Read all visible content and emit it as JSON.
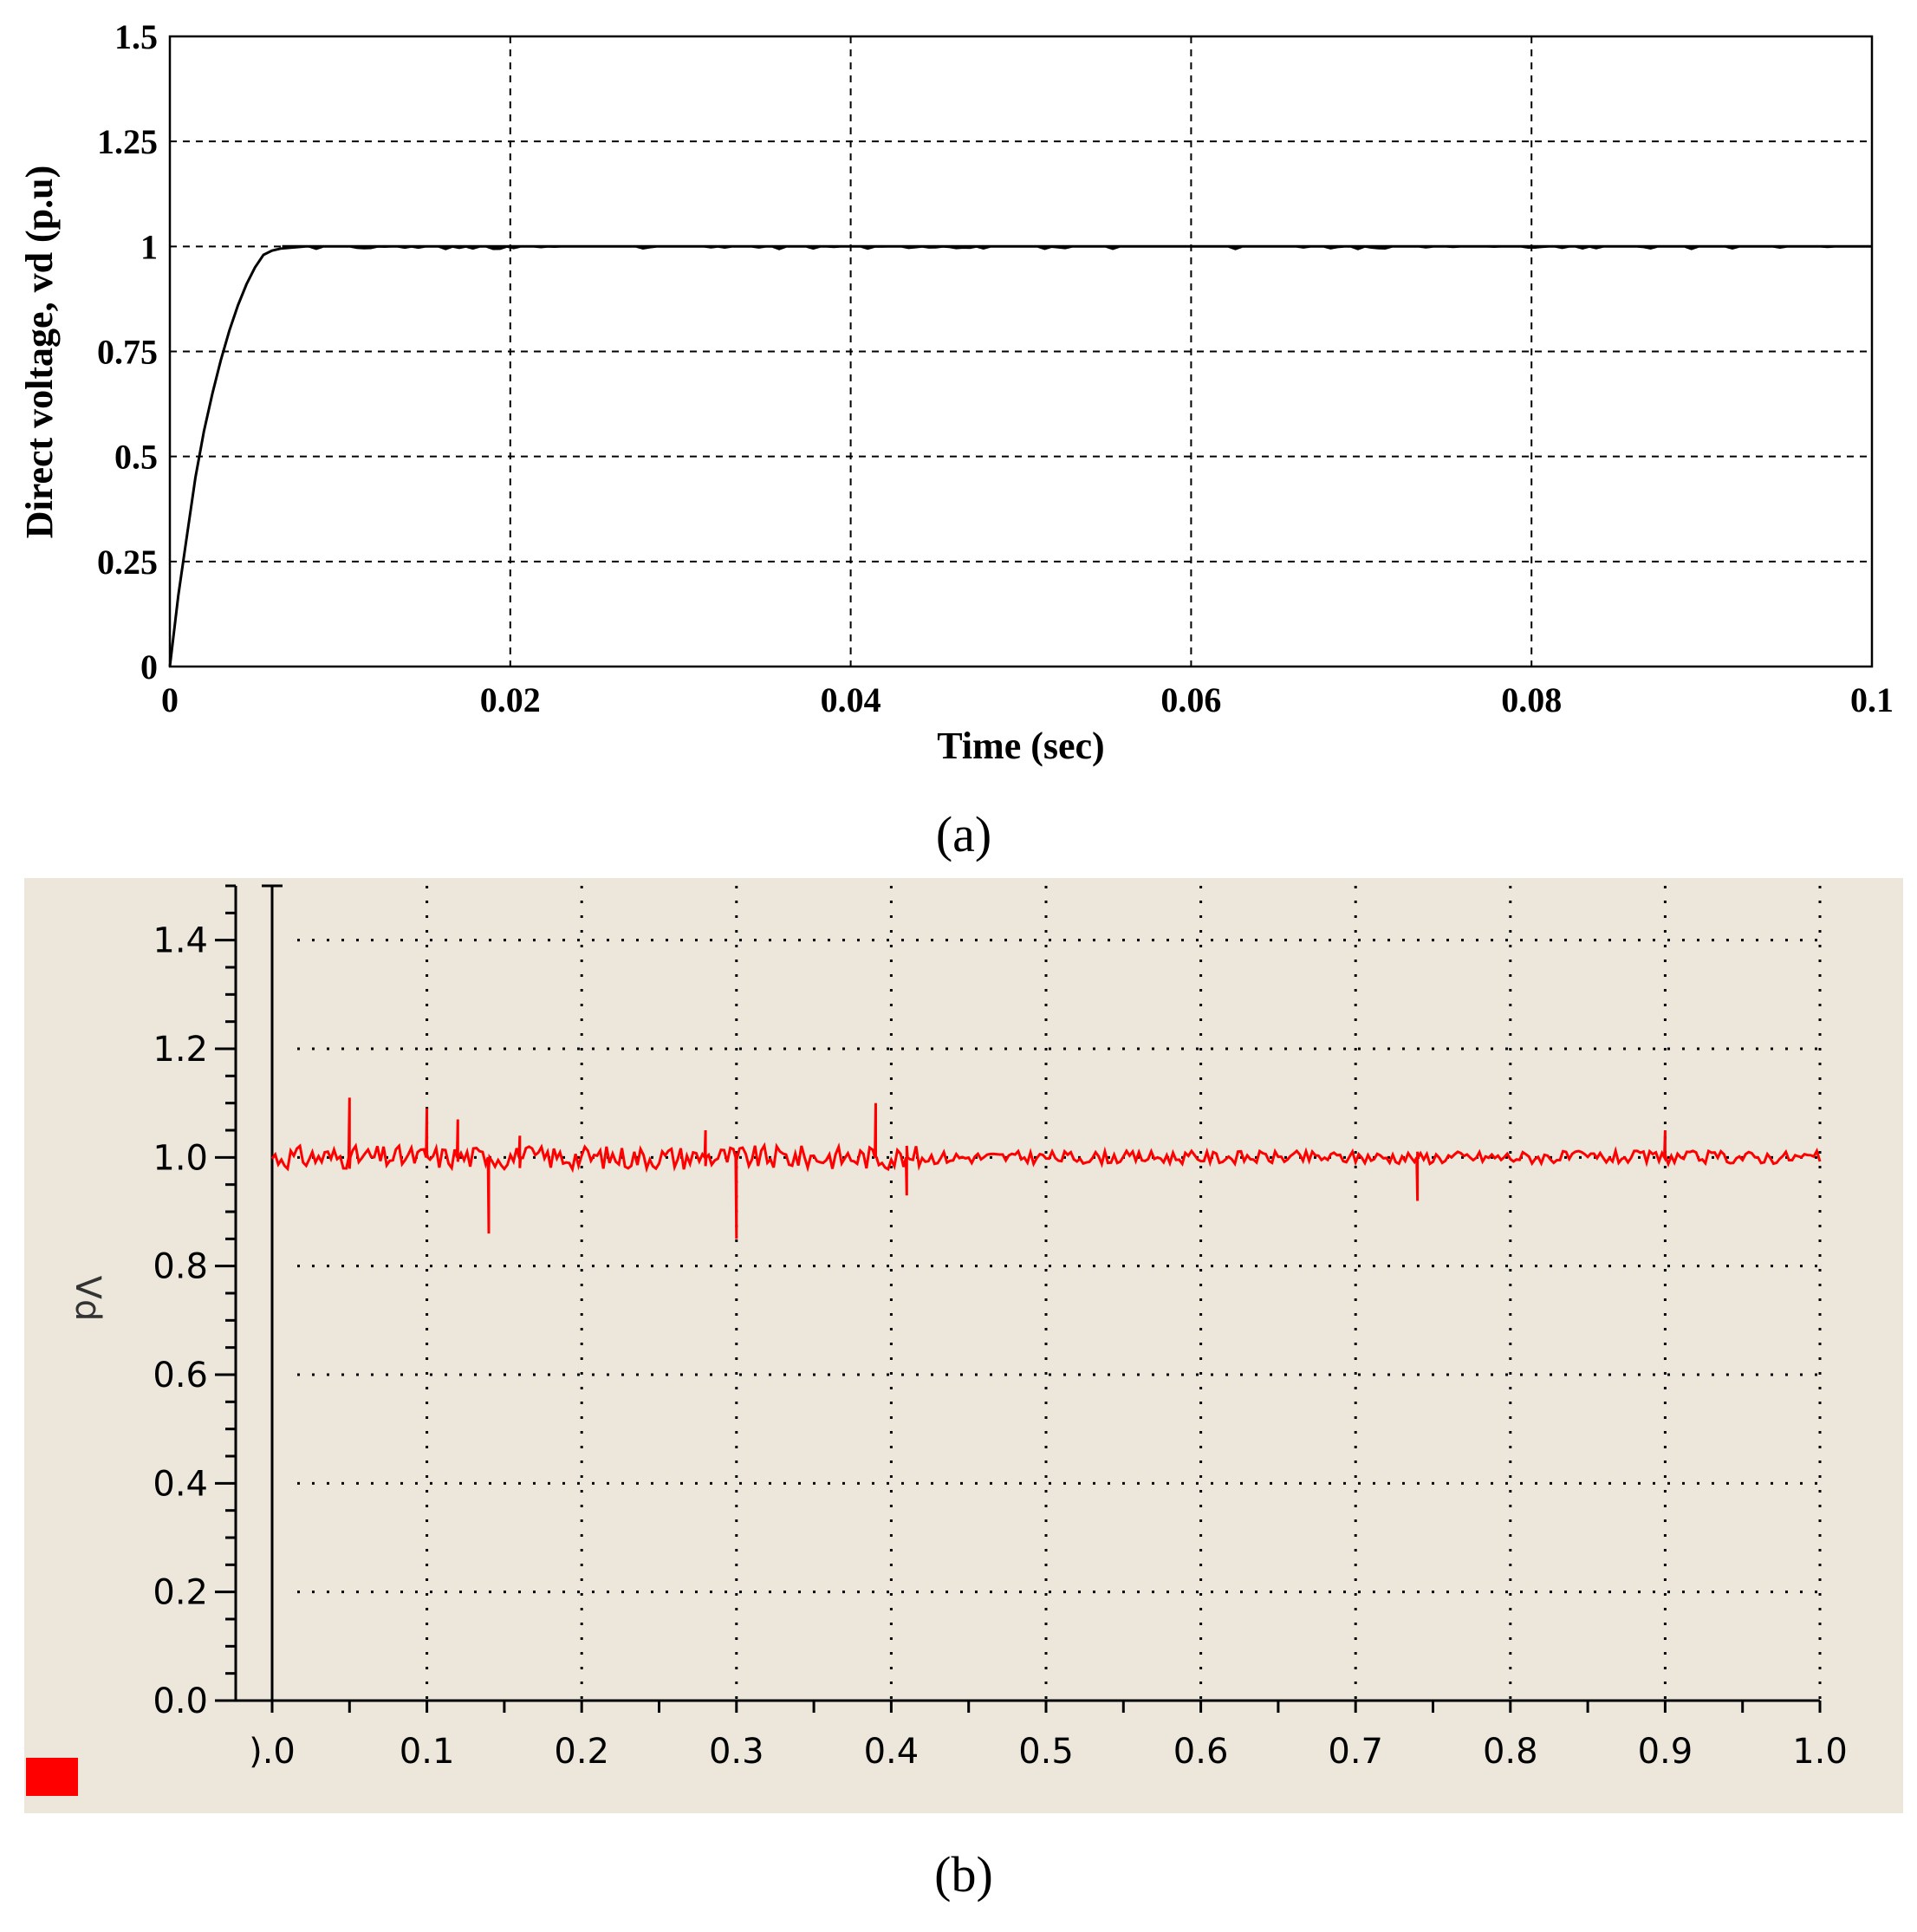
{
  "chart_data": [
    {
      "panel_label": "a",
      "type": "line",
      "title": "",
      "xlabel": "Time (sec)",
      "ylabel": "Direct voltage, vd (p.u)",
      "xlim": [
        0,
        0.1
      ],
      "ylim": [
        0,
        1.5
      ],
      "x_ticks": [
        "0",
        "0.02",
        "0.04",
        "0.06",
        "0.08",
        "0.1"
      ],
      "y_ticks": [
        "0",
        "0.25",
        "0.5",
        "0.75",
        "1",
        "1.25",
        "1.5"
      ],
      "grid": true,
      "line_color": "#000000",
      "series": [
        {
          "values_x": [
            0,
            0.0005,
            0.001,
            0.0015,
            0.002,
            0.0025,
            0.003,
            0.0035,
            0.004,
            0.0045,
            0.005,
            0.0055,
            0.006,
            0.0065,
            0.008,
            0.012,
            0.018,
            0.03,
            0.05,
            0.07,
            0.09,
            0.1
          ],
          "values_y": [
            0,
            0.17,
            0.31,
            0.45,
            0.56,
            0.65,
            0.73,
            0.8,
            0.86,
            0.91,
            0.95,
            0.98,
            0.99,
            0.995,
            1.0,
            1.0,
            1.0,
            1.0,
            1.0,
            1.0,
            1.0,
            1.0
          ]
        }
      ]
    },
    {
      "panel_label": "b",
      "type": "line",
      "title": "",
      "xlabel": "",
      "ylabel": "Vd",
      "xlim": [
        0,
        1.0
      ],
      "ylim": [
        0,
        1.5
      ],
      "x_ticks": [
        ").0",
        "0.1",
        "0.2",
        "0.3",
        "0.4",
        "0.5",
        "0.6",
        "0.7",
        "0.8",
        "0.9",
        "1.0"
      ],
      "y_ticks": [
        "0.0",
        "0.2",
        "0.4",
        "0.6",
        "0.8",
        "1.0",
        "1.2",
        "1.4"
      ],
      "grid": true,
      "background": "#ece7da",
      "line_color": "#ff0000",
      "legend_swatch_color": "#ff0000",
      "series": [
        {
          "nominal": 1.0,
          "spikes": [
            {
              "x": 0.05,
              "y": 1.11
            },
            {
              "x": 0.1,
              "y": 1.09
            },
            {
              "x": 0.12,
              "y": 1.07
            },
            {
              "x": 0.14,
              "y": 0.86
            },
            {
              "x": 0.16,
              "y": 1.04
            },
            {
              "x": 0.28,
              "y": 1.05
            },
            {
              "x": 0.3,
              "y": 0.85
            },
            {
              "x": 0.39,
              "y": 1.1
            },
            {
              "x": 0.41,
              "y": 0.93
            },
            {
              "x": 0.74,
              "y": 0.92
            },
            {
              "x": 0.9,
              "y": 1.05
            }
          ]
        }
      ]
    }
  ],
  "captions": {
    "a": "(a)",
    "b": "(b)"
  }
}
